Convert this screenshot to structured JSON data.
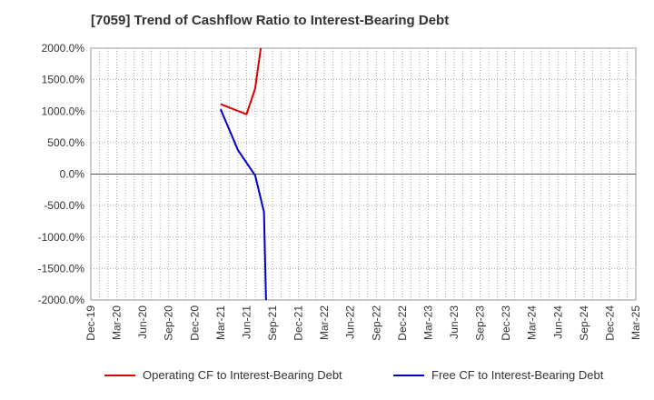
{
  "chart_data": {
    "type": "line",
    "title": "[7059]  Trend of Cashflow Ratio to Interest-Bearing Debt",
    "xlabel": "",
    "ylabel": "",
    "ylim": [
      -2000,
      2000
    ],
    "y_ticks": [
      2000,
      1500,
      1000,
      500,
      0,
      -500,
      -1000,
      -1500,
      -2000
    ],
    "y_tick_labels": [
      "2000.0%",
      "1500.0%",
      "1000.0%",
      "500.0%",
      "0.0%",
      "-500.0%",
      "-1000.0%",
      "-1500.0%",
      "-2000.0%"
    ],
    "x_tick_labels": [
      "Dec-19",
      "Mar-20",
      "Jun-20",
      "Sep-20",
      "Dec-20",
      "Mar-21",
      "Jun-21",
      "Sep-21",
      "Dec-21",
      "Mar-22",
      "Jun-22",
      "Sep-22",
      "Dec-22",
      "Mar-23",
      "Jun-23",
      "Sep-23",
      "Dec-23",
      "Mar-24",
      "Jun-24",
      "Sep-24",
      "Dec-24",
      "Mar-25"
    ],
    "grid": true,
    "legend_position": "bottom",
    "series": [
      {
        "name": "Operating CF to Interest-Bearing Debt",
        "color": "#dd0000",
        "points": [
          {
            "x": 5.0,
            "y": 1110
          },
          {
            "x": 6.0,
            "y": 950
          },
          {
            "x": 6.33,
            "y": 1360
          },
          {
            "x": 6.55,
            "y": 2000
          }
        ]
      },
      {
        "name": "Free CF to Interest-Bearing Debt",
        "color": "#0000cc",
        "points": [
          {
            "x": 5.0,
            "y": 1030
          },
          {
            "x": 5.67,
            "y": 380
          },
          {
            "x": 6.33,
            "y": -20
          },
          {
            "x": 6.67,
            "y": -600
          },
          {
            "x": 6.75,
            "y": -2000
          }
        ]
      }
    ]
  }
}
